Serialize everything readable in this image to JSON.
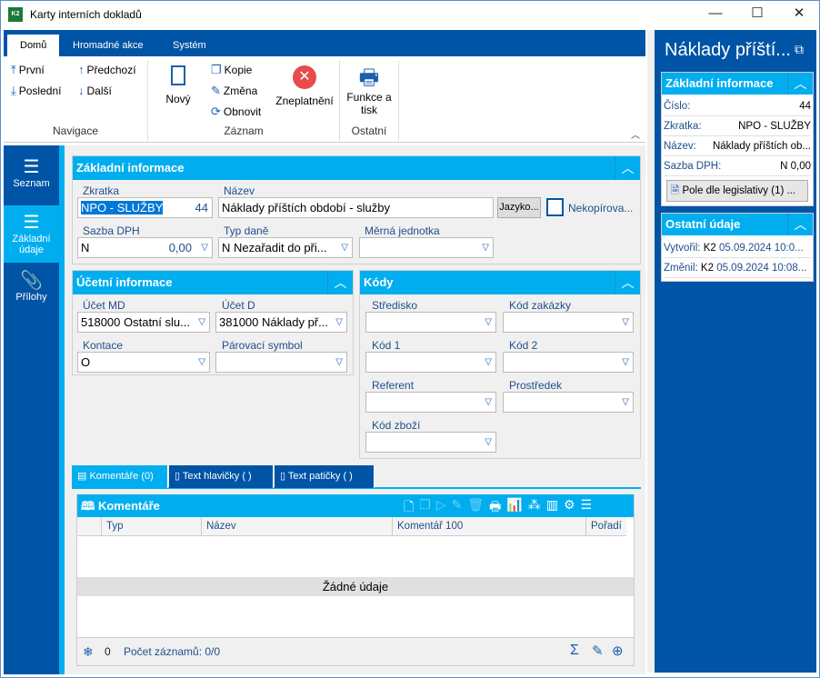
{
  "window": {
    "title": "Karty interních dokladů",
    "logo": "K2",
    "minimize": "—",
    "maximize": "☐",
    "close": "✕"
  },
  "ribbon": {
    "tabs": [
      "Domů",
      "Hromadné akce",
      "Systém"
    ],
    "nav": {
      "first": "První",
      "prev": "Předchozí",
      "last": "Poslední",
      "next": "Další",
      "group": "Navigace"
    },
    "record": {
      "new": "Nový",
      "copy": "Kopie",
      "edit": "Změna",
      "refresh": "Obnovit",
      "invalidate": "Zneplatnění",
      "group": "Záznam"
    },
    "other": {
      "print": "Funkce a tisk",
      "group": "Ostatní"
    }
  },
  "sidebar": {
    "items": [
      {
        "label": "Seznam"
      },
      {
        "label": "Základní údaje"
      },
      {
        "label": "Přílohy"
      }
    ]
  },
  "basic": {
    "title": "Základní informace",
    "zkratka_label": "Zkratka",
    "zkratka": "NPO - SLUŽBY",
    "cislo": "44",
    "nazev_label": "Název",
    "nazev": "Náklady příštích období - služby",
    "jazyk": "Jazyko...",
    "nekopirovat": "Nekopírova...",
    "nekopirovat_checked": false,
    "sazba_label": "Sazba DPH",
    "sazba_code": "N",
    "sazba_value": "0,00",
    "typ_label": "Typ daně",
    "typ": "N Nezařadit do při...",
    "mj_label": "Měrná jednotka",
    "mj": ""
  },
  "accounting": {
    "title": "Účetní informace",
    "md_label": "Účet MD",
    "md": "518000 Ostatní slu...",
    "d_label": "Účet D",
    "d": "381000 Náklady př...",
    "kontace_label": "Kontace",
    "kontace": "O",
    "parovaci_label": "Párovací symbol",
    "parovaci": ""
  },
  "codes": {
    "title": "Kódy",
    "fields": [
      {
        "label": "Středisko",
        "value": ""
      },
      {
        "label": "Kód zakázky",
        "value": ""
      },
      {
        "label": "Kód 1",
        "value": ""
      },
      {
        "label": "Kód 2",
        "value": ""
      },
      {
        "label": "Referent",
        "value": ""
      },
      {
        "label": "Prostředek",
        "value": ""
      },
      {
        "label": "Kód zboží",
        "value": ""
      }
    ]
  },
  "bottom_tabs": [
    "Komentáře (0)",
    "Text hlavičky ( )",
    "Text patičky ( )"
  ],
  "comments": {
    "title": "Komentáře",
    "columns": [
      "Typ",
      "Název",
      "Komentář 100",
      "Pořadí"
    ],
    "empty": "Žádné údaje",
    "filter_count": "0",
    "record_count": "Počet záznamů: 0/0"
  },
  "right_panel": {
    "title": "Náklady příští...",
    "basic_title": "Základní informace",
    "rows": [
      {
        "label": "Číslo:",
        "value": "44"
      },
      {
        "label": "Zkratka:",
        "value": "NPO - SLUŽBY"
      },
      {
        "label": "Název:",
        "value": "Náklady příštích ob..."
      },
      {
        "label": "Sazba DPH:",
        "value": "N   0,00"
      }
    ],
    "legislation_button": "Pole dle legislativy (1) ...",
    "other_title": "Ostatní údaje",
    "created_label": "Vytvořil:",
    "created_user": "K2",
    "created_date": "05.09.2024 10:0...",
    "changed_label": "Změnil:",
    "changed_user": "K2",
    "changed_date": "05.09.2024 10:08..."
  },
  "colors": {
    "dark_blue": "#0054a6",
    "accent": "#00aeef",
    "invalidate": "#e84b4b"
  }
}
